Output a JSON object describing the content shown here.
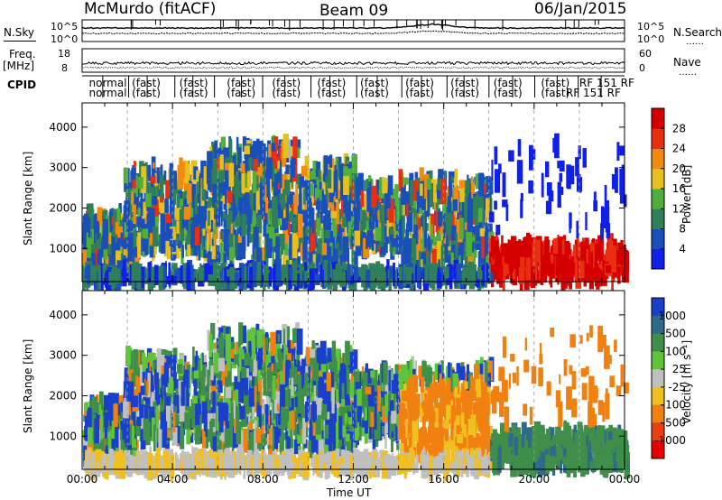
{
  "header": {
    "station": "McMurdo (fitACF)",
    "beam": "Beam 09",
    "date": "06/Jan/2015"
  },
  "side_labels": {
    "nsky": "N.Sky",
    "nsearch": "N.Search",
    "nsearch_dots": "……",
    "freq_line1": "Freq.",
    "freq_line2": "[MHz]",
    "nave": "Nave",
    "nave_dots": "……",
    "cpid": "CPID"
  },
  "strip_ticks": {
    "noise_left": [
      "10^5",
      "10^0"
    ],
    "noise_right": [
      "10^5",
      "10^0"
    ],
    "freq_left": [
      "18",
      "8"
    ],
    "nave_right": [
      "60",
      "0"
    ]
  },
  "cpid_labels": [
    {
      "text": "normal",
      "row": 0,
      "t": 0.3
    },
    {
      "text": "normal",
      "row": 1,
      "t": 0.3
    },
    {
      "text": "(fast)",
      "row": 0,
      "t": 2.2
    },
    {
      "text": "(fast)",
      "row": 1,
      "t": 2.2
    },
    {
      "text": "(fast)",
      "row": 0,
      "t": 4.3
    },
    {
      "text": "(fast)",
      "row": 1,
      "t": 4.3
    },
    {
      "text": "(fast)",
      "row": 0,
      "t": 6.4
    },
    {
      "text": "(fast)",
      "row": 1,
      "t": 6.4
    },
    {
      "text": "(fast)",
      "row": 0,
      "t": 8.4
    },
    {
      "text": "(fast)",
      "row": 1,
      "t": 8.4
    },
    {
      "text": "(fast)",
      "row": 0,
      "t": 10.4
    },
    {
      "text": "(fast)",
      "row": 1,
      "t": 10.4
    },
    {
      "text": "(fast)",
      "row": 0,
      "t": 12.3
    },
    {
      "text": "(fast)",
      "row": 1,
      "t": 12.3
    },
    {
      "text": "(fast)",
      "row": 0,
      "t": 14.3
    },
    {
      "text": "(fast)",
      "row": 1,
      "t": 14.3
    },
    {
      "text": "(fast)",
      "row": 0,
      "t": 16.3
    },
    {
      "text": "(fast)",
      "row": 1,
      "t": 16.3
    },
    {
      "text": "(fast)",
      "row": 0,
      "t": 18.2
    },
    {
      "text": "(fast)",
      "row": 1,
      "t": 18.2
    },
    {
      "text": "(fast)",
      "row": 0,
      "t": 20.3
    },
    {
      "text": "(fast)",
      "row": 1,
      "t": 20.3
    },
    {
      "text": "RF 151 RF",
      "row": 0,
      "t": 22.0
    },
    {
      "text": "RF 151 RF",
      "row": 1,
      "t": 21.4
    }
  ],
  "chart_data": [
    {
      "type": "heatmap",
      "panel": "power",
      "ylabel": "Slant Range [km]",
      "xlim": [
        0,
        24
      ],
      "ylim": [
        180,
        4600
      ],
      "yticks": [
        "1000",
        "2000",
        "3000",
        "4000"
      ],
      "colorbar": {
        "label": "Power [dB]",
        "ticks": [
          "4",
          "8",
          "12",
          "16",
          "20",
          "24",
          "28"
        ],
        "colors": [
          "#1020e6",
          "#1a4fb8",
          "#2f7f5a",
          "#4fae3c",
          "#e6c020",
          "#f08a10",
          "#e83010",
          "#d40000"
        ]
      }
    },
    {
      "type": "heatmap",
      "panel": "velocity",
      "ylabel": "Slant Range [km]",
      "xlabel": "Time UT",
      "xlim": [
        0,
        24
      ],
      "ylim": [
        180,
        4600
      ],
      "yticks": [
        "1000",
        "2000",
        "3000",
        "4000"
      ],
      "xticks": [
        "00:00",
        "04:00",
        "08:00",
        "12:00",
        "16:00",
        "20:00",
        "00:00"
      ],
      "colorbar": {
        "label": "Velocity [m s⁻¹]",
        "ticks": [
          "1000",
          "500",
          "100",
          "25",
          "-25",
          "-100",
          "-500",
          "-1000"
        ],
        "colors": [
          "#1a3fc8",
          "#2f6a8a",
          "#3f8f4a",
          "#5fc43a",
          "#c0c0c0",
          "#f0c020",
          "#f08010",
          "#e84010",
          "#e80000"
        ]
      }
    }
  ],
  "colors": {
    "gridline": "#9a9a9a"
  }
}
